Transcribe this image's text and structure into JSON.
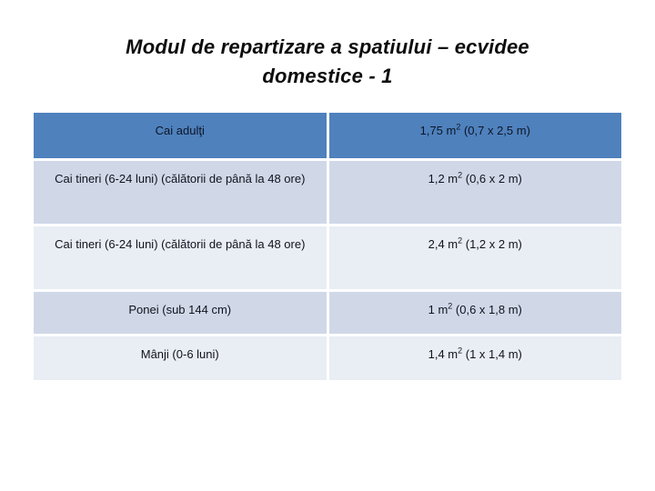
{
  "slide": {
    "title": {
      "line1": "Modul de repartizare a spatiului – ecvidee",
      "line2": "domestice - 1"
    }
  },
  "table": {
    "columns": [
      "category",
      "space_allocation"
    ],
    "rows": [
      {
        "label": "Cai adulţi",
        "value_pre": "1,75 m",
        "value_sup": "2",
        "value_post": " (0,7 x 2,5 m)"
      },
      {
        "label": "Cai tineri (6-24 luni) (călătorii de până la 48 ore)",
        "value_pre": "1,2 m",
        "value_sup": "2",
        "value_post": " (0,6 x 2 m)"
      },
      {
        "label": "Cai tineri (6-24 luni) (călătorii de până la 48 ore)",
        "value_pre": "2,4 m",
        "value_sup": "2",
        "value_post": " (1,2 x 2 m)"
      },
      {
        "label": "Ponei (sub 144 cm)",
        "value_pre": "1 m",
        "value_sup": "2",
        "value_post": " (0,6 x 1,8 m)"
      },
      {
        "label": "Mânji (0-6 luni)",
        "value_pre": "1,4 m",
        "value_sup": "2",
        "value_post": " (1 x 1,4 m)"
      }
    ],
    "colors": {
      "header_bg": "#4f81bd",
      "band_dark": "#d0d8e8",
      "band_light": "#e9edf4",
      "text": "#10131c"
    }
  }
}
